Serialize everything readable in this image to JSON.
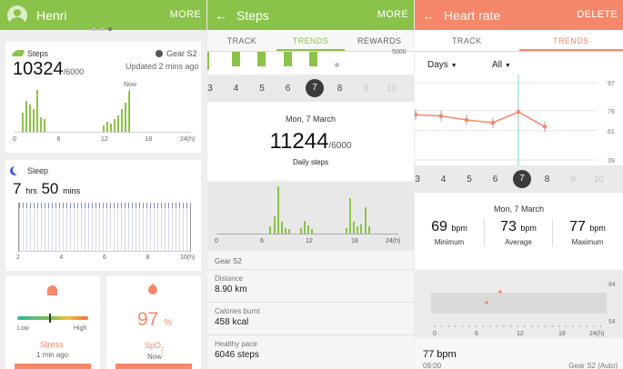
{
  "screen1": {
    "user_name": "Henri",
    "more": "MORE",
    "steps": {
      "label": "Steps",
      "value": "10324",
      "goal": "/6000",
      "device": "Gear S2",
      "updated": "Updated 2 mins ago",
      "now": "Now",
      "ticks": [
        "0",
        "6",
        "12",
        "18",
        "24(h)"
      ]
    },
    "sleep": {
      "label": "Sleep",
      "hours": "7",
      "hrs": "hrs",
      "minutes": "50",
      "mins": "mins",
      "ticks": [
        "2",
        "4",
        "6",
        "8",
        "10(h)"
      ]
    },
    "stress": {
      "low": "Low",
      "high": "High",
      "label": "Stress",
      "time": "1 min ago"
    },
    "spo2": {
      "value": "97",
      "unit": "%",
      "label": "SpO",
      "sub": "2",
      "time": "Now"
    }
  },
  "screen2": {
    "title": "Steps",
    "more": "MORE",
    "tabs": [
      "TRACK",
      "TRENDS",
      "REWARDS"
    ],
    "top_value": "5000",
    "dates": [
      "3",
      "4",
      "5",
      "6",
      "7",
      "8",
      "9",
      "10"
    ],
    "date_heading": "Mon, 7 March",
    "steps_value": "11244",
    "goal": "/6000",
    "caption": "Daily steps",
    "ticks": [
      "0",
      "6",
      "12",
      "18",
      "24(h)"
    ],
    "device": "Gear S2",
    "stats": [
      {
        "label": "Distance",
        "value": "8.90 km"
      },
      {
        "label": "Calories burnt",
        "value": "458 kcal"
      },
      {
        "label": "Healthy pace",
        "value": "6046 steps"
      }
    ]
  },
  "screen3": {
    "title": "Heart rate",
    "delete": "DELETE",
    "tabs": [
      "TRACK",
      "TRENDS"
    ],
    "filter1": "Days",
    "filter2": "All",
    "y_ticks": [
      "97",
      "76",
      "61",
      "39"
    ],
    "dates": [
      "3",
      "4",
      "5",
      "6",
      "7",
      "8",
      "9",
      "10"
    ],
    "date_heading": "Mon, 7 March",
    "min": {
      "value": "69",
      "unit": "bpm",
      "label": "Minimum"
    },
    "avg": {
      "value": "73",
      "unit": "bpm",
      "label": "Average"
    },
    "max": {
      "value": "77",
      "unit": "bpm",
      "label": "Maximum"
    },
    "range_ticks": [
      "84",
      "54"
    ],
    "x_ticks": [
      "0",
      "6",
      "12",
      "18",
      "24(h)"
    ],
    "last_value": "77 bpm",
    "last_time": "09:00",
    "last_device": "Gear S2 (Auto)"
  },
  "colors": {
    "green": "#8bc34a",
    "coral": "#f5876a",
    "blue": "#3a5bd9"
  },
  "chart_data": [
    {
      "type": "bar",
      "series": [
        {
          "name": "Steps",
          "x_hours": [
            1,
            1.5,
            2,
            2.5,
            3,
            3.5,
            4,
            12,
            12.5,
            13,
            13.5,
            14,
            14.5,
            15,
            15.5
          ],
          "values": [
            18,
            30,
            26,
            22,
            40,
            14,
            12,
            6,
            10,
            8,
            12,
            16,
            22,
            28,
            38
          ]
        }
      ]
    },
    {
      "type": "bar",
      "series": [
        {
          "name": "Daily steps",
          "x_hours": [
            7,
            7.5,
            8,
            8.5,
            9,
            9.5,
            11,
            11.5,
            12,
            12.5,
            17,
            17.5,
            18,
            18.5,
            19,
            19.5,
            20
          ],
          "values": [
            12,
            30,
            80,
            20,
            10,
            8,
            10,
            22,
            14,
            8,
            10,
            60,
            20,
            12,
            16,
            45,
            12
          ]
        }
      ]
    },
    {
      "type": "line",
      "series": [
        {
          "name": "Heart rate",
          "x": [
            "3",
            "4",
            "5",
            "6",
            "7",
            "8"
          ],
          "values": [
            73,
            72,
            69,
            67,
            75,
            64
          ]
        }
      ]
    }
  ]
}
